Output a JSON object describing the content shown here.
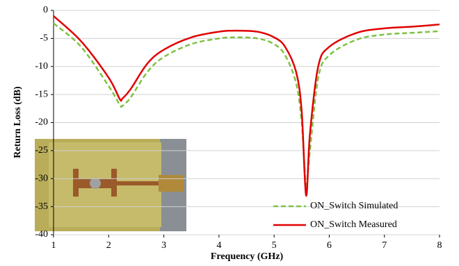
{
  "chart_data": {
    "type": "line",
    "x_label": "Frequency (GHz)",
    "y_label": "Return Loss (dB)",
    "x": [
      1,
      1.5,
      2,
      2.2,
      2.25,
      2.4,
      2.7,
      3,
      3.5,
      4,
      4.3,
      4.7,
      5,
      5.2,
      5.4,
      5.5,
      5.58,
      5.65,
      5.8,
      6,
      6.5,
      7,
      7.5,
      8
    ],
    "series": [
      {
        "name": "ON_Switch Simulated",
        "color": "#7dc242",
        "dash": true,
        "values": [
          -2.3,
          -6.5,
          -13.5,
          -16.8,
          -17,
          -15.5,
          -11,
          -8.3,
          -6,
          -5,
          -4.8,
          -5,
          -6,
          -8,
          -13,
          -20,
          -31,
          -25,
          -12,
          -8,
          -5.2,
          -4.3,
          -4,
          -3.7
        ]
      },
      {
        "name": "ON_Switch Measured",
        "color": "#e00000",
        "dash": false,
        "values": [
          -1,
          -5.5,
          -12,
          -15.8,
          -15.7,
          -14,
          -9.5,
          -7,
          -4.8,
          -3.8,
          -3.6,
          -3.8,
          -4.8,
          -6.5,
          -11,
          -18,
          -33,
          -22,
          -10,
          -6.5,
          -4,
          -3.2,
          -2.9,
          -2.5
        ]
      }
    ],
    "xlim": [
      1,
      8
    ],
    "xticks": [
      1,
      2,
      3,
      4,
      5,
      6,
      7,
      8
    ],
    "ylim": [
      -40,
      0
    ],
    "yticks": [
      -40,
      -35,
      -30,
      -25,
      -20,
      -15,
      -10,
      -5,
      0
    ],
    "grid": true
  }
}
